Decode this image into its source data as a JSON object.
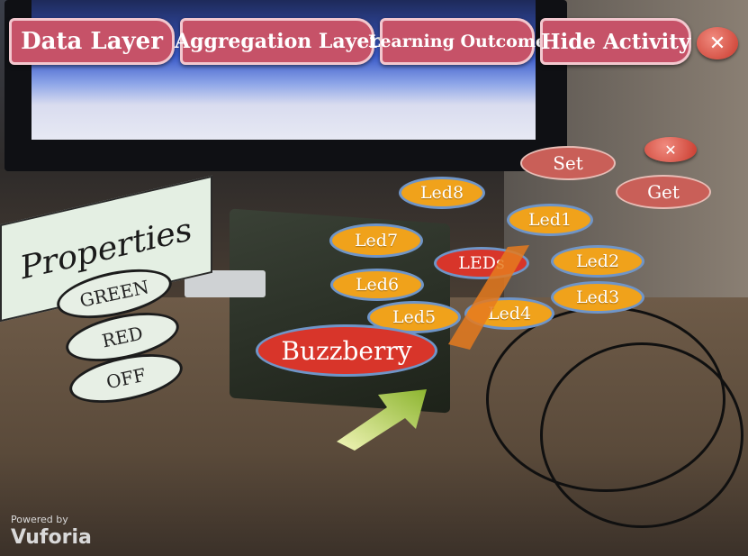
{
  "top_bar": {
    "data_layer": "Data Layer",
    "aggregation_layer": "Aggregation Layer",
    "learning_outcome": "Learning Outcome",
    "hide_activity": "Hide Activity"
  },
  "properties_panel": {
    "title": "Properties",
    "options": [
      "GREEN",
      "RED",
      "OFF"
    ]
  },
  "led_menu": {
    "center": "LEDs",
    "leds": [
      "Led1",
      "Led2",
      "Led3",
      "Led4",
      "Led5",
      "Led6",
      "Led7",
      "Led8"
    ],
    "set": "Set",
    "get": "Get"
  },
  "device_label": "Buzzberry",
  "watermark": {
    "powered_by": "Powered by",
    "brand": "Vuforia"
  },
  "colors": {
    "top_button": "#c65268",
    "led_button": "#f0a21b",
    "led_border": "#6f95c8",
    "device_button": "#d8352a",
    "set_get_button": "#c95f58",
    "properties_bg": "#e4efe3",
    "arrow": "#a9cc48"
  },
  "icons": {
    "close": "close-icon",
    "arrow": "arrow-icon"
  }
}
